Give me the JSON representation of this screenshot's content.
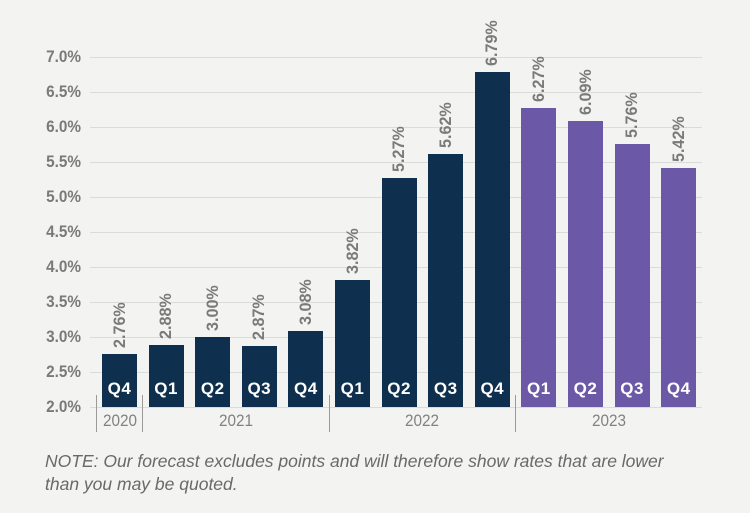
{
  "chart_data": {
    "type": "bar",
    "title": "",
    "xlabel": "",
    "ylabel": "",
    "ylim": [
      2.0,
      7.0
    ],
    "ytick_labels": [
      "7.0%",
      "6.5%",
      "6.0%",
      "5.5%",
      "5.0%",
      "4.5%",
      "4.0%",
      "3.5%",
      "3.0%",
      "2.5%",
      "2.0%"
    ],
    "grid": true,
    "legend": null,
    "bars": [
      {
        "quarter": "Q4",
        "year": "2020",
        "value": 2.76,
        "label": "2.76%",
        "segment": "actual"
      },
      {
        "quarter": "Q1",
        "year": "2021",
        "value": 2.88,
        "label": "2.88%",
        "segment": "actual"
      },
      {
        "quarter": "Q2",
        "year": "2021",
        "value": 3.0,
        "label": "3.00%",
        "segment": "actual"
      },
      {
        "quarter": "Q3",
        "year": "2021",
        "value": 2.87,
        "label": "2.87%",
        "segment": "actual"
      },
      {
        "quarter": "Q4",
        "year": "2021",
        "value": 3.08,
        "label": "3.08%",
        "segment": "actual"
      },
      {
        "quarter": "Q1",
        "year": "2022",
        "value": 3.82,
        "label": "3.82%",
        "segment": "actual"
      },
      {
        "quarter": "Q2",
        "year": "2022",
        "value": 5.27,
        "label": "5.27%",
        "segment": "actual"
      },
      {
        "quarter": "Q3",
        "year": "2022",
        "value": 5.62,
        "label": "5.62%",
        "segment": "actual"
      },
      {
        "quarter": "Q4",
        "year": "2022",
        "value": 6.79,
        "label": "6.79%",
        "segment": "actual"
      },
      {
        "quarter": "Q1",
        "year": "2023",
        "value": 6.27,
        "label": "6.27%",
        "segment": "forecast"
      },
      {
        "quarter": "Q2",
        "year": "2023",
        "value": 6.09,
        "label": "6.09%",
        "segment": "forecast"
      },
      {
        "quarter": "Q3",
        "year": "2023",
        "value": 5.76,
        "label": "5.76%",
        "segment": "forecast"
      },
      {
        "quarter": "Q4",
        "year": "2023",
        "value": 5.42,
        "label": "5.42%",
        "segment": "forecast"
      }
    ],
    "year_groups": [
      {
        "year": "2020",
        "start": 0,
        "count": 1
      },
      {
        "year": "2021",
        "start": 1,
        "count": 4
      },
      {
        "year": "2022",
        "start": 5,
        "count": 4
      },
      {
        "year": "2023",
        "start": 9,
        "count": 4
      }
    ],
    "segment_colors": {
      "actual": "#0E304E",
      "forecast": "#6B59A7"
    }
  },
  "note": "NOTE: Our forecast excludes points and will therefore show rates that are lower than you may be quoted.",
  "colors": {
    "background": "#F3F3F2",
    "gridline": "#DBDBDB",
    "axis_text": "#7A7A7A",
    "year_text": "#828282",
    "separator": "#9A9A9A",
    "bar_quarter_text": "#FFFFFF",
    "note_text": "#696969"
  }
}
